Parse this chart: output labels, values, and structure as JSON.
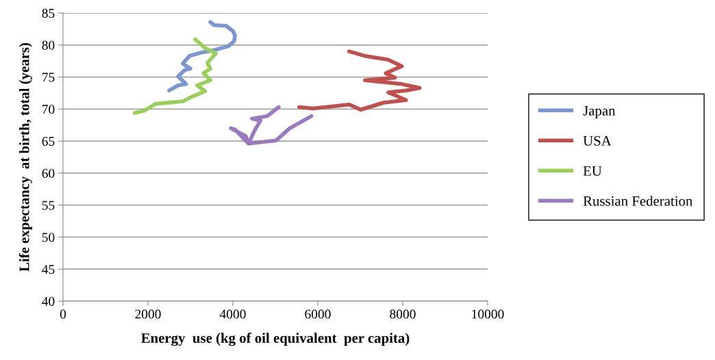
{
  "chart_data": {
    "type": "line",
    "xlabel": "Energy  use (kg of oil equivalent  per capita)",
    "ylabel": "Life expectancy  at birth, total (years)",
    "xlim": [
      0,
      10000
    ],
    "xticks": [
      0,
      2000,
      4000,
      6000,
      8000,
      10000
    ],
    "ylim": [
      40,
      85
    ],
    "yticks": [
      40,
      45,
      50,
      55,
      60,
      65,
      70,
      75,
      80,
      85
    ],
    "grid": "y",
    "legend": "right",
    "series": [
      {
        "name": "Japan",
        "color": "#7b96d0",
        "x": [
          2500,
          2710,
          2900,
          2710,
          2870,
          3000,
          2820,
          2980,
          3240,
          3560,
          3890,
          4030,
          4050,
          4000,
          3840,
          3560,
          3470
        ],
        "values": [
          72.9,
          73.7,
          73.9,
          75.1,
          76.1,
          76.3,
          77.1,
          78.3,
          78.8,
          79.2,
          79.8,
          80.6,
          81.5,
          82.2,
          83.0,
          83.1,
          83.6
        ]
      },
      {
        "name": "USA",
        "color": "#c0504d",
        "x": [
          5560,
          5890,
          6740,
          7010,
          7550,
          8080,
          7660,
          8080,
          8400,
          7980,
          7110,
          7820,
          7600,
          7980,
          7660,
          7110,
          6740
        ],
        "values": [
          70.3,
          70.1,
          70.7,
          69.9,
          71.0,
          71.4,
          72.6,
          72.9,
          73.3,
          73.9,
          74.5,
          74.9,
          75.6,
          76.7,
          77.7,
          78.3,
          79.0
        ]
      },
      {
        "name": "EU",
        "color": "#9bcf5c",
        "x": [
          1690,
          1900,
          2180,
          2820,
          3030,
          3350,
          3160,
          3470,
          3310,
          3470,
          3400,
          3600,
          3350,
          3110
        ],
        "values": [
          69.4,
          69.7,
          70.8,
          71.2,
          71.9,
          72.8,
          73.7,
          74.5,
          75.6,
          76.3,
          77.2,
          78.7,
          79.5,
          80.9
        ]
      },
      {
        "name": "Russian Federation",
        "color": "#9a7bbf",
        "x": [
          5080,
          4810,
          4450,
          4650,
          4500,
          4370,
          4050,
          3950,
          4300,
          4370,
          5020,
          5340,
          5850
        ],
        "values": [
          70.3,
          68.9,
          68.5,
          68.2,
          66.5,
          64.6,
          66.8,
          67.0,
          65.8,
          64.6,
          65.1,
          67.0,
          68.9
        ]
      }
    ]
  }
}
